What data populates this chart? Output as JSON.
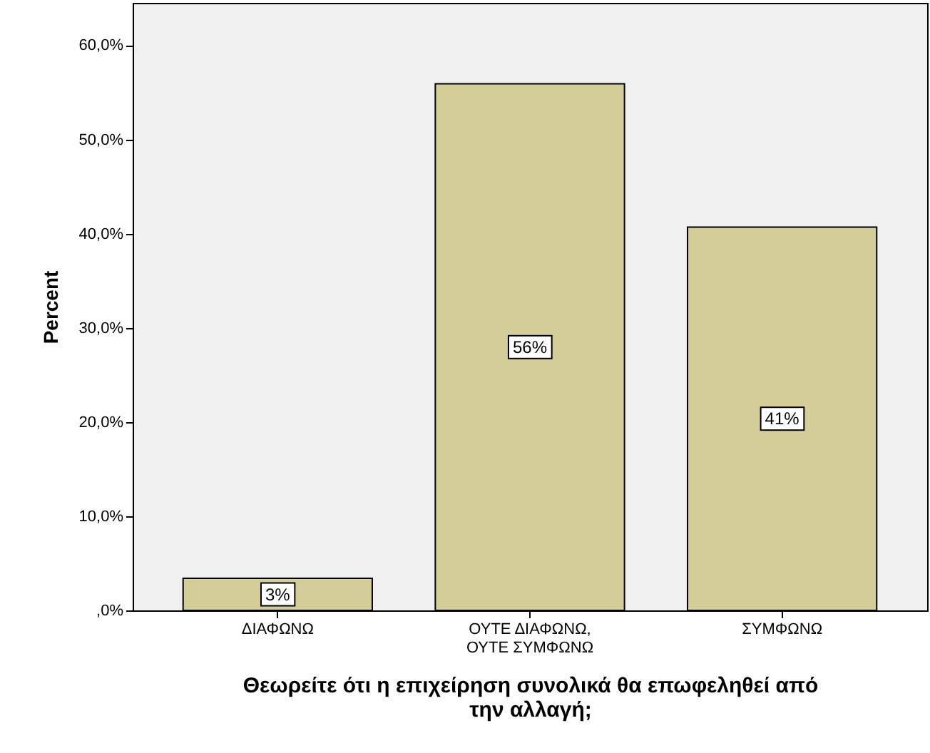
{
  "chart_data": {
    "type": "bar",
    "xlabel": "Θεωρείτε ότι η επιχείρηση συνολικά θα επωφεληθεί από την αλλαγή;",
    "ylabel": "Percent",
    "categories": [
      "ΔΙΑΦΩΝΩ",
      "ΟΥΤΕ ΔΙΑΦΩΝΩ, ΟΥΤΕ ΣΥΜΦΩΝΩ",
      "ΣΥΜΦΩΝΩ"
    ],
    "values": [
      3.4,
      55.9,
      40.7
    ],
    "color": "#d3ce97",
    "value_labels": [
      "3%",
      "56%",
      "41%"
    ],
    "ylim": [
      0,
      64.5
    ],
    "yticks": [
      {
        "value": 0,
        "label": ",0%"
      },
      {
        "value": 10,
        "label": "10,0%"
      },
      {
        "value": 20,
        "label": "20,0%"
      },
      {
        "value": 30,
        "label": "30,0%"
      },
      {
        "value": 40,
        "label": "40,0%"
      },
      {
        "value": 50,
        "label": "50,0%"
      },
      {
        "value": 60,
        "label": "60,0%"
      }
    ],
    "grid": false
  }
}
